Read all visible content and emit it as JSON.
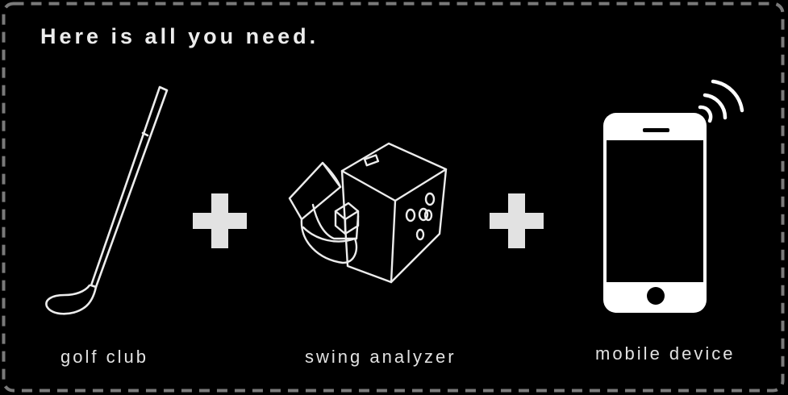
{
  "heading": "Here is all you need.",
  "items": [
    {
      "label": "golf club",
      "icon": "golf-club-icon"
    },
    {
      "label": "swing analyzer",
      "icon": "swing-analyzer-icon"
    },
    {
      "label": "mobile device",
      "icon": "mobile-phone-icon"
    }
  ],
  "operators": [
    "plus-icon",
    "plus-icon"
  ],
  "colors": {
    "background": "#000000",
    "border": "#7a7a7a",
    "foreground": "#ececec"
  }
}
